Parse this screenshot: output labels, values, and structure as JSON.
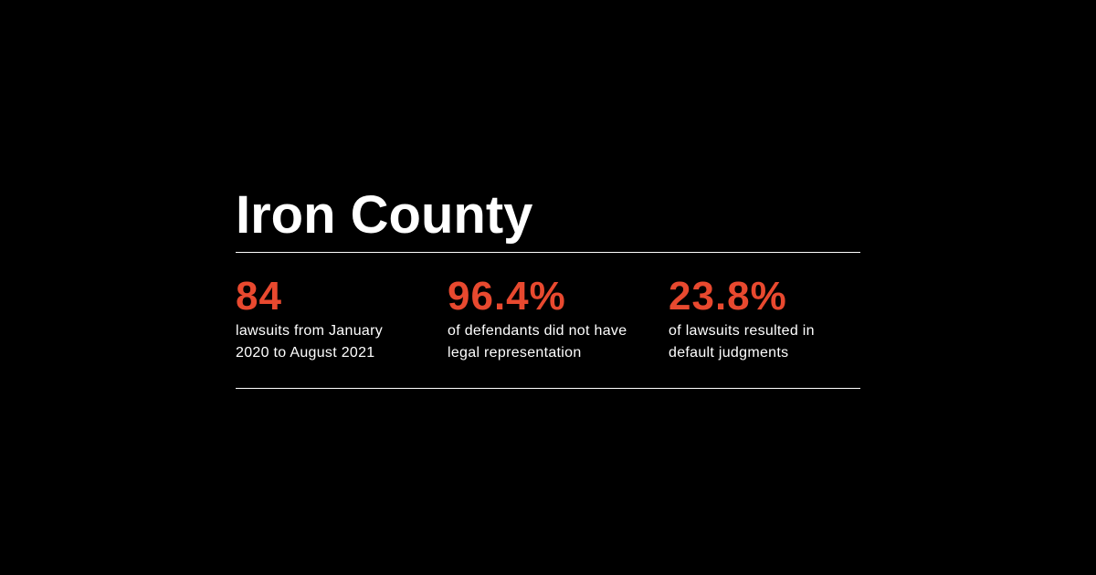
{
  "title": "Iron County",
  "colors": {
    "background": "#000000",
    "accent": "#e8492f",
    "text": "#ffffff"
  },
  "stats": [
    {
      "value": "84",
      "description_line1": "lawsuits from January",
      "description_line2": "2020 to August 2021"
    },
    {
      "value": "96.4%",
      "description_line1": "of defendants did not have",
      "description_line2": "legal representation"
    },
    {
      "value": "23.8%",
      "description_line1": "of lawsuits resulted in",
      "description_line2": "default judgments"
    }
  ]
}
